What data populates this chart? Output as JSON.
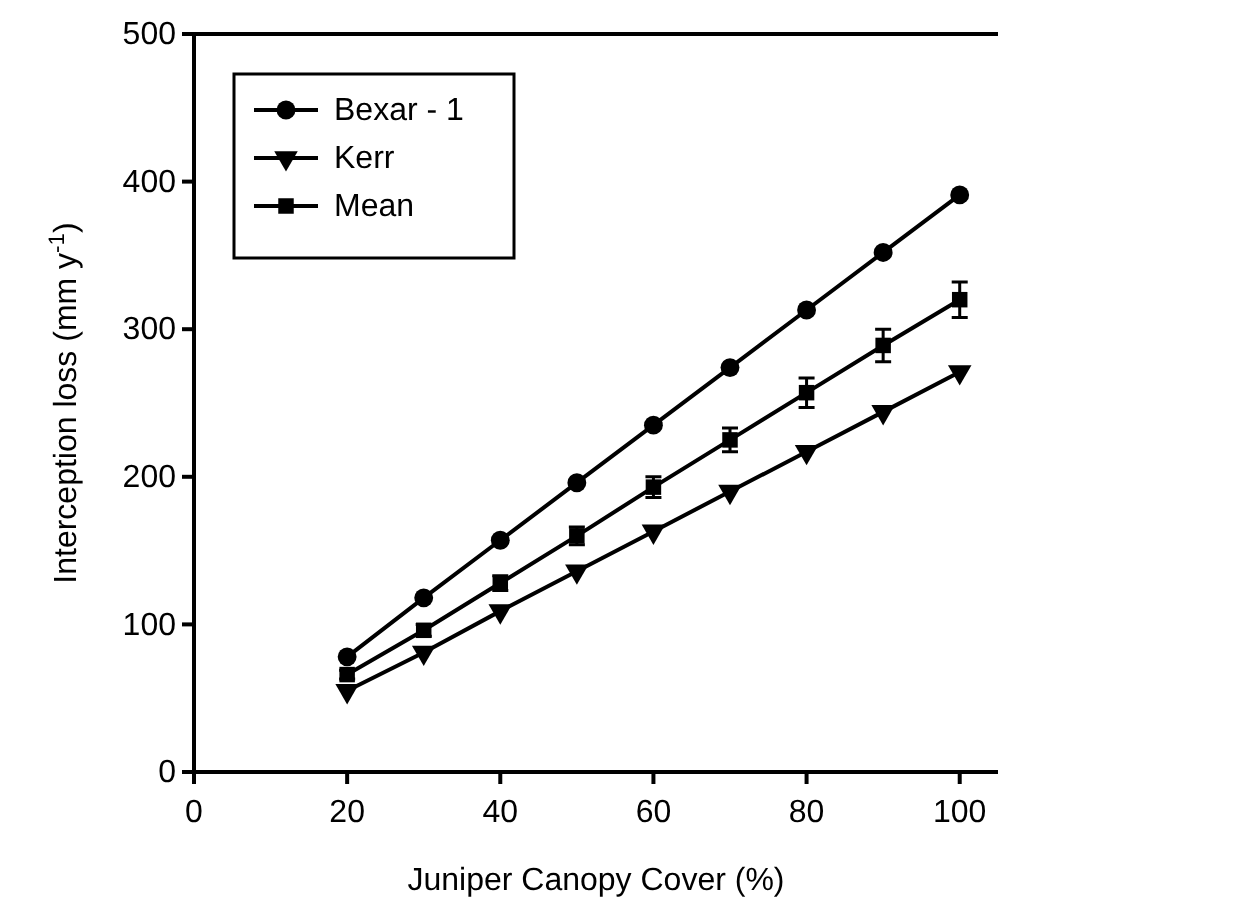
{
  "chart_data": {
    "type": "line",
    "xlabel": "Juniper Canopy Cover (%)",
    "ylabel": "Interception loss (mm y$^{-1}$)",
    "xlim": [
      0,
      105
    ],
    "xticks": [
      0,
      20,
      40,
      60,
      80,
      100
    ],
    "ylim": [
      0,
      500
    ],
    "yticks": [
      0,
      100,
      200,
      300,
      400,
      500
    ],
    "legend": "top left",
    "grid": false,
    "line_style": "solid",
    "x": [
      20,
      30,
      40,
      50,
      60,
      70,
      80,
      90,
      100
    ],
    "series": [
      {
        "name": "Bexar - 1",
        "color": "#000000",
        "marker": "circle",
        "values": [
          78,
          118,
          157,
          196,
          235,
          274,
          313,
          352,
          391
        ]
      },
      {
        "name": "Kerr",
        "color": "#000000",
        "marker": "triangle",
        "values": [
          55,
          81,
          109,
          136,
          163,
          190,
          217,
          244,
          271
        ]
      },
      {
        "name": "Mean",
        "color": "#000000",
        "marker": "square",
        "values": [
          66,
          96,
          128,
          160,
          193,
          225,
          257,
          289,
          320
        ],
        "errors": [
          3,
          4,
          5,
          6,
          7,
          8,
          10,
          11,
          12
        ]
      }
    ]
  }
}
